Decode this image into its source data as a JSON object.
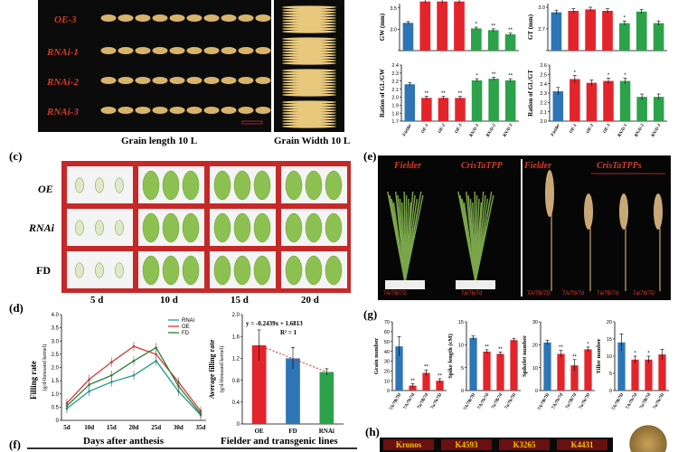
{
  "panel_a": {
    "rows": [
      "OE-3",
      "RNAi-1",
      "RNAi-2",
      "RNAi-3"
    ],
    "caption_length": "Grain length  10 L",
    "caption_width": "Grain Width  10 L"
  },
  "panel_c": {
    "letter": "(c)",
    "rows": [
      "OE",
      "RNAi",
      "FD"
    ],
    "days": [
      "5 d",
      "10 d",
      "15 d",
      "20 d"
    ]
  },
  "panel_d": {
    "letter": "(d)",
    "line_ylabel": "Filling rate",
    "line_ylabel2": "(g/d/thousand kernel)",
    "line_xlabel": "Days after anthesis",
    "bar_ylabel": "Average filling rate",
    "bar_ylabel2": "(g/d/thousand kernel)",
    "bar_xlabel": "Fielder and transgenic lines",
    "equation": "y = -0.2439x + 1.6813",
    "r2": "R² = 1"
  },
  "panel_e": {
    "letter": "(e)",
    "labels": [
      "Fielder",
      "CrisTaTPP",
      "Fielder",
      "CrisTaTPPs"
    ],
    "genotypes": [
      "7A/7B/7D",
      "7a/7b/7d",
      "7A/7B/7D",
      "7A/7b/7d",
      "7a/7B/7d",
      "7a/7b/7D"
    ]
  },
  "panel_g": {
    "letter": "(g)"
  },
  "panel_h": {
    "letter": "(h)",
    "labels": [
      "Kronos",
      "K4593",
      "K3265",
      "K4431"
    ]
  },
  "panel_f": {
    "letter": "(f)"
  },
  "colors": {
    "blue": "#2e75b6",
    "red": "#e3242b",
    "green": "#2ca24a"
  },
  "chart_data": [
    {
      "id": "gw",
      "type": "bar",
      "ylabel": "GW (mm)",
      "categories": [
        "Fielder",
        "OE-1",
        "OE-2",
        "OE-3",
        "RNAi-1",
        "RNAi-2",
        "RNAi-3"
      ],
      "values": [
        3.15,
        3.65,
        3.65,
        3.65,
        3.02,
        2.98,
        2.88
      ],
      "errors": [
        0.03,
        0.04,
        0.04,
        0.04,
        0.03,
        0.03,
        0.03
      ],
      "sig": [
        "",
        "",
        "",
        "",
        "*",
        "**",
        "**"
      ],
      "ylim": [
        2.5,
        3.6
      ],
      "yticks": [
        2.5,
        3.0,
        3.5
      ],
      "ytick_labels": [
        "",
        "3.0",
        "3.5"
      ]
    },
    {
      "id": "gt",
      "type": "bar",
      "ylabel": "GT (mm)",
      "categories": [
        "Fielder",
        "OE-1",
        "OE-2",
        "OE-3",
        "RNAi-1",
        "RNAi-2",
        "RNAi-3"
      ],
      "values": [
        2.93,
        2.95,
        2.97,
        2.95,
        2.78,
        2.94,
        2.78
      ],
      "errors": [
        0.03,
        0.03,
        0.03,
        0.03,
        0.03,
        0.03,
        0.03
      ],
      "sig": [
        "",
        "",
        "",
        "",
        "*",
        "",
        ""
      ],
      "ylim": [
        2.4,
        3.05
      ],
      "yticks": [
        2.4,
        2.7,
        3.0
      ],
      "ytick_labels": [
        "",
        "2.7",
        "3.0"
      ]
    },
    {
      "id": "glgw",
      "type": "bar",
      "ylabel": "Ration of GL/GW",
      "categories": [
        "Fielder",
        "OE-1",
        "OE-2",
        "OE-3",
        "RNAi-1",
        "RNAi-2",
        "RNAi-3"
      ],
      "values": [
        2.16,
        1.99,
        1.99,
        1.99,
        2.21,
        2.23,
        2.21
      ],
      "errors": [
        0.02,
        0.02,
        0.02,
        0.02,
        0.02,
        0.02,
        0.02
      ],
      "sig": [
        "",
        "**",
        "**",
        "**",
        "*",
        "**",
        "**"
      ],
      "ylim": [
        1.7,
        2.4
      ],
      "yticks": [
        1.7,
        1.8,
        1.9,
        2.0,
        2.1,
        2.2,
        2.3,
        2.4
      ],
      "ytick_labels": [
        "1.7",
        "1.8",
        "1.9",
        "2.0",
        "2.1",
        "2.2",
        "2.3",
        "2.4"
      ]
    },
    {
      "id": "glgt",
      "type": "bar",
      "ylabel": "Ration of GL/GT",
      "categories": [
        "Fielder",
        "OE-1",
        "OE-2",
        "OE-3",
        "RNAi-1",
        "RNAi-2",
        "RNAi-3"
      ],
      "values": [
        2.32,
        2.45,
        2.41,
        2.43,
        2.43,
        2.26,
        2.26
      ],
      "errors": [
        0.04,
        0.04,
        0.03,
        0.03,
        0.03,
        0.03,
        0.03
      ],
      "sig": [
        "",
        "*",
        "",
        "*",
        "*",
        "",
        ""
      ],
      "ylim": [
        2.0,
        2.6
      ],
      "yticks": [
        2.0,
        2.1,
        2.2,
        2.3,
        2.4,
        2.5,
        2.6
      ],
      "ytick_labels": [
        "2.0",
        "2.1",
        "2.2",
        "2.3",
        "2.4",
        "2.5",
        "2.6"
      ]
    },
    {
      "id": "fill_line",
      "type": "line",
      "x": [
        "5d",
        "10d",
        "15d",
        "20d",
        "25d",
        "30d",
        "35d"
      ],
      "series": [
        {
          "name": "RNAi",
          "values": [
            0.45,
            1.1,
            1.45,
            1.7,
            2.25,
            1.1,
            0.2
          ]
        },
        {
          "name": "OE",
          "values": [
            0.65,
            1.55,
            2.2,
            2.8,
            2.5,
            1.45,
            0.35
          ]
        },
        {
          "name": "FD",
          "values": [
            0.55,
            1.35,
            1.7,
            2.25,
            2.75,
            1.3,
            0.25
          ]
        }
      ],
      "ylim": [
        0,
        4
      ],
      "yticks": [
        0.0,
        0.5,
        1.0,
        1.5,
        2.0,
        2.5,
        3.0,
        3.5,
        4.0
      ],
      "ytick_labels": [
        "0",
        "0.5",
        "1.0",
        "1.5",
        "2.0",
        "2.5",
        "3.0",
        "3.5",
        "4.0"
      ]
    },
    {
      "id": "fill_bar",
      "type": "bar",
      "categories": [
        "OE",
        "FD",
        "RNAi"
      ],
      "values": [
        1.44,
        1.2,
        0.95
      ],
      "errors": [
        0.28,
        0.2,
        0.06
      ],
      "ylim": [
        0,
        2.0
      ],
      "yticks": [
        0,
        0.4,
        0.8,
        1.2,
        1.6,
        2.0
      ],
      "ytick_labels": [
        "0",
        "0.4",
        "0.8",
        "1.2",
        "1.6",
        "2.0"
      ]
    },
    {
      "id": "grain_num",
      "type": "bar",
      "ylabel": "Grain number",
      "categories": [
        "7A/7B/7D",
        "7A/7b/7d",
        "7a/7B/7d",
        "7a/7b/7D"
      ],
      "values": [
        45,
        5,
        18,
        10
      ],
      "errors": [
        10,
        2,
        3,
        2
      ],
      "sig": [
        "",
        "**",
        "**",
        "**"
      ],
      "ylim": [
        0,
        70
      ],
      "yticks": [
        0,
        10,
        20,
        30,
        40,
        50,
        60,
        70
      ],
      "ytick_labels": [
        "0",
        "10",
        "20",
        "30",
        "40",
        "50",
        "60",
        "70"
      ]
    },
    {
      "id": "spike_len",
      "type": "bar",
      "ylabel": "Spike length (cM)",
      "categories": [
        "7A/7B/7D",
        "7A/7b/7d",
        "7a/7B/7d",
        "7a/7b/7D"
      ],
      "values": [
        11.5,
        8.5,
        8,
        11
      ],
      "errors": [
        0.4,
        0.4,
        0.4,
        0.4
      ],
      "sig": [
        "",
        "**",
        "**",
        ""
      ],
      "ylim": [
        0,
        15
      ],
      "yticks": [
        0,
        5,
        10,
        15
      ],
      "ytick_labels": [
        "0",
        "5",
        "10",
        "15"
      ]
    },
    {
      "id": "spikelet",
      "type": "bar",
      "ylabel": "Spikelet number",
      "categories": [
        "7A/7B/7D",
        "7A/7b/7d",
        "7a/7B/7d",
        "7a/7b/7D"
      ],
      "values": [
        21,
        16,
        11,
        18
      ],
      "errors": [
        1,
        1.5,
        2.5,
        1
      ],
      "sig": [
        "",
        "**",
        "**",
        "*"
      ],
      "ylim": [
        0,
        30
      ],
      "yticks": [
        0,
        10,
        20,
        30
      ],
      "ytick_labels": [
        "0",
        "10",
        "20",
        "30"
      ]
    },
    {
      "id": "tiller",
      "type": "bar",
      "ylabel": "Tiller number",
      "categories": [
        "7A/7B/7D",
        "7A/7b/7d",
        "7a/7B/7d",
        "7a/7b/7D"
      ],
      "values": [
        14,
        9,
        9,
        10.5
      ],
      "errors": [
        2.5,
        1,
        1,
        1.5
      ],
      "sig": [
        "",
        "*",
        "*",
        ""
      ],
      "ylim": [
        0,
        20
      ],
      "yticks": [
        0,
        5,
        10,
        15,
        20
      ],
      "ytick_labels": [
        "0",
        "5",
        "10",
        "15",
        "20"
      ]
    }
  ]
}
